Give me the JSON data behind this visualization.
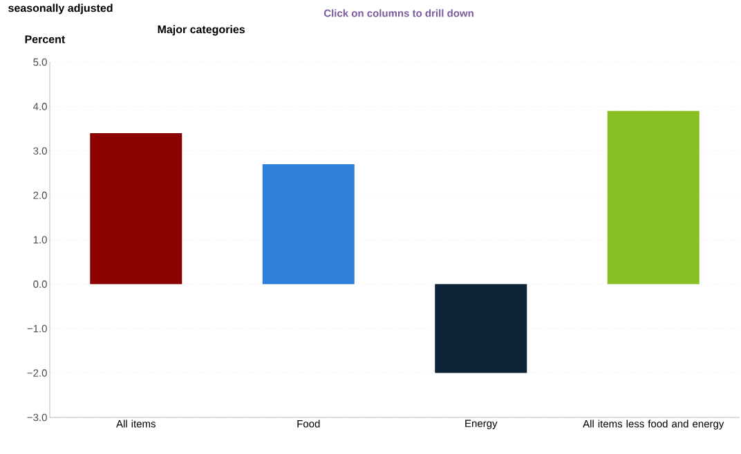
{
  "chart_data": {
    "type": "bar",
    "title": "seasonally adjusted",
    "subtitle": "Major categories",
    "ylabel": "Percent",
    "annotations": [
      "Click on columns to drill down"
    ],
    "categories": [
      "All items",
      "Food",
      "Energy",
      "All items less food and energy"
    ],
    "values": [
      3.4,
      2.7,
      -2.0,
      3.9
    ],
    "colors": [
      "#8b0000",
      "#2e7fd9",
      "#0c2338",
      "#88bf22"
    ],
    "ylim": [
      -3,
      5
    ],
    "yticks": [
      {
        "value": 5,
        "label": "5.0"
      },
      {
        "value": 4,
        "label": "4.0"
      },
      {
        "value": 3,
        "label": "3.0"
      },
      {
        "value": 2,
        "label": "2.0"
      },
      {
        "value": 1,
        "label": "1.0"
      },
      {
        "value": 0,
        "label": "0.0"
      },
      {
        "value": -1,
        "label": "−1.0"
      },
      {
        "value": -2,
        "label": "−2.0"
      },
      {
        "value": -3,
        "label": "−3.0"
      }
    ],
    "grid": "y"
  }
}
